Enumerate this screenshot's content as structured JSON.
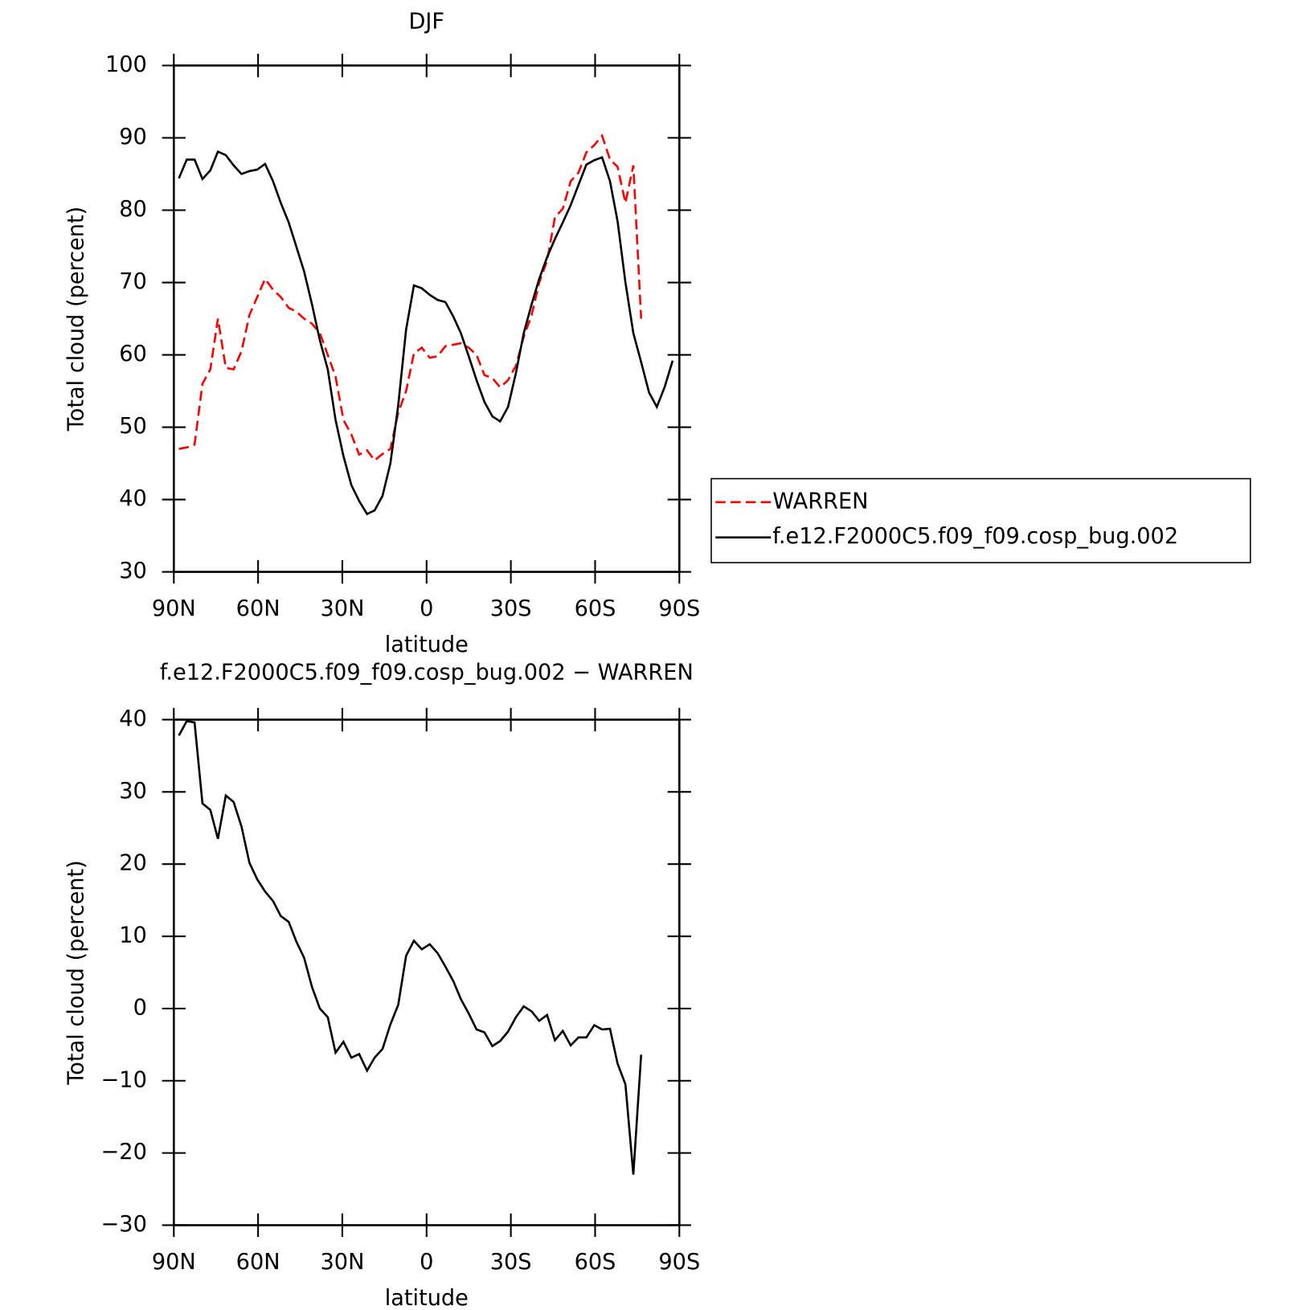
{
  "chart_data": [
    {
      "type": "line",
      "title": "DJF",
      "xlabel": "latitude",
      "ylabel": "Total cloud (percent)",
      "x": [
        88.2,
        85.4,
        82.6,
        79.8,
        77.0,
        74.3,
        71.5,
        68.7,
        65.9,
        63.1,
        60.3,
        57.5,
        54.7,
        51.9,
        49.1,
        46.4,
        43.6,
        40.8,
        38.0,
        35.2,
        32.4,
        29.6,
        26.8,
        24.0,
        21.2,
        18.5,
        15.7,
        12.9,
        10.1,
        7.3,
        4.5,
        1.7,
        -1.1,
        -3.9,
        -6.7,
        -9.5,
        -12.2,
        -15.0,
        -17.8,
        -20.6,
        -23.4,
        -26.2,
        -29.0,
        -31.8,
        -34.6,
        -37.4,
        -40.1,
        -42.9,
        -45.7,
        -48.5,
        -51.3,
        -54.1,
        -56.9,
        -59.7,
        -62.5,
        -65.3,
        -68.0,
        -70.8,
        -73.6,
        -76.4,
        -79.2,
        -82.0,
        -84.8,
        -87.6
      ],
      "series": [
        {
          "name": "WARREN",
          "color": "#ff0000",
          "style": "dashed",
          "values": [
            47,
            47.2,
            47.6,
            56,
            58,
            65,
            58.2,
            58,
            60.5,
            65.5,
            68,
            70.5,
            69,
            68,
            66.5,
            66,
            65,
            64.3,
            63,
            60,
            57,
            51,
            49,
            46.2,
            46.8,
            45.4,
            46.3,
            47,
            52,
            55,
            60.2,
            61,
            59.6,
            59.8,
            61.2,
            61.4,
            61.6,
            61,
            60,
            57.2,
            56.8,
            55.5,
            56.5,
            58.5,
            62.5,
            65.5,
            70,
            73,
            79,
            80.2,
            84,
            85.2,
            88,
            89,
            90.3,
            87,
            86,
            81,
            86.2,
            65,
            null,
            null,
            null,
            null
          ]
        },
        {
          "name": "f.e12.F2000C5.f09_f09.cosp_bug.002",
          "color": "#000000",
          "style": "solid",
          "values": [
            84.4,
            87,
            87,
            84.3,
            85.5,
            88.1,
            87.6,
            86.2,
            85,
            85.4,
            85.6,
            86.4,
            84,
            81,
            78.3,
            75,
            71.5,
            67,
            62,
            58,
            51,
            46,
            42,
            39.8,
            38,
            38.5,
            40.5,
            45,
            53,
            63.5,
            69.6,
            69.2,
            68.3,
            67.6,
            67.3,
            65.3,
            63,
            59.8,
            56.5,
            53.5,
            51.5,
            50.8,
            52.8,
            57.5,
            63,
            67,
            70.5,
            73.5,
            76,
            78.3,
            80.7,
            83.5,
            86.3,
            86.9,
            87.3,
            84,
            78.5,
            70,
            63,
            59,
            54.8,
            52.8,
            55.6,
            59.2
          ]
        }
      ],
      "xlim": [
        90,
        -90
      ],
      "xticks": [
        {
          "value": 90,
          "label": "90N"
        },
        {
          "value": 60,
          "label": "60N"
        },
        {
          "value": 30,
          "label": "30N"
        },
        0,
        {
          "value": -30,
          "label": "30S"
        },
        {
          "value": -60,
          "label": "60S"
        },
        {
          "value": -90,
          "label": "90S"
        }
      ],
      "ylim": [
        30,
        100
      ],
      "yticks": [
        30,
        40,
        50,
        60,
        70,
        80,
        90,
        100
      ],
      "legend": true
    },
    {
      "type": "line",
      "title": "f.e12.F2000C5.f09_f09.cosp_bug.002 − WARREN",
      "xlabel": "latitude",
      "ylabel": "Total cloud (percent)",
      "x": [
        88.2,
        85.4,
        82.6,
        79.8,
        77.0,
        74.3,
        71.5,
        68.7,
        65.9,
        63.1,
        60.3,
        57.5,
        54.7,
        51.9,
        49.1,
        46.4,
        43.6,
        40.8,
        38.0,
        35.2,
        32.4,
        29.6,
        26.8,
        24.0,
        21.2,
        18.5,
        15.7,
        12.9,
        10.1,
        7.3,
        4.5,
        1.7,
        -1.1,
        -3.9,
        -6.7,
        -9.5,
        -12.2,
        -15.0,
        -17.8,
        -20.6,
        -23.4,
        -26.2,
        -29.0,
        -31.8,
        -34.6,
        -37.4,
        -40.1,
        -42.9,
        -45.7,
        -48.5,
        -51.3,
        -54.1,
        -56.9,
        -59.7,
        -62.5,
        -65.3,
        -68.0,
        -70.8,
        -73.6,
        -76.4,
        -79.2,
        -82.0,
        -84.8,
        -87.6
      ],
      "series": [
        {
          "color": "#000000",
          "style": "solid",
          "values": [
            37.8,
            39.8,
            39.6,
            28.4,
            27.5,
            23.5,
            29.5,
            28.6,
            25.2,
            20.2,
            17.9,
            16.2,
            14.9,
            12.8,
            12,
            9.3,
            7,
            3,
            0,
            -1.2,
            -6.1,
            -4.6,
            -6.8,
            -6.3,
            -8.6,
            -6.8,
            -5.6,
            -2.2,
            0.5,
            7.3,
            9.4,
            8.2,
            8.9,
            7.7,
            5.8,
            3.8,
            1.3,
            -0.7,
            -2.9,
            -3.3,
            -5.2,
            -4.5,
            -3.2,
            -1.2,
            0.3,
            -0.4,
            -1.7,
            -0.9,
            -4.4,
            -3.1,
            -5.1,
            -4,
            -4,
            -2.3,
            -2.9,
            -2.8,
            -7.6,
            -10.5,
            -23,
            -6.4,
            null,
            null,
            null,
            null
          ]
        }
      ],
      "xlim": [
        90,
        -90
      ],
      "xticks": [
        {
          "value": 90,
          "label": "90N"
        },
        {
          "value": 60,
          "label": "60N"
        },
        {
          "value": 30,
          "label": "30N"
        },
        0,
        {
          "value": -30,
          "label": "30S"
        },
        {
          "value": -60,
          "label": "60S"
        },
        {
          "value": -90,
          "label": "90S"
        }
      ],
      "ylim": [
        -30,
        40
      ],
      "yticks": [
        -30,
        -20,
        -10,
        0,
        10,
        20,
        30,
        40
      ],
      "legend": false
    }
  ]
}
